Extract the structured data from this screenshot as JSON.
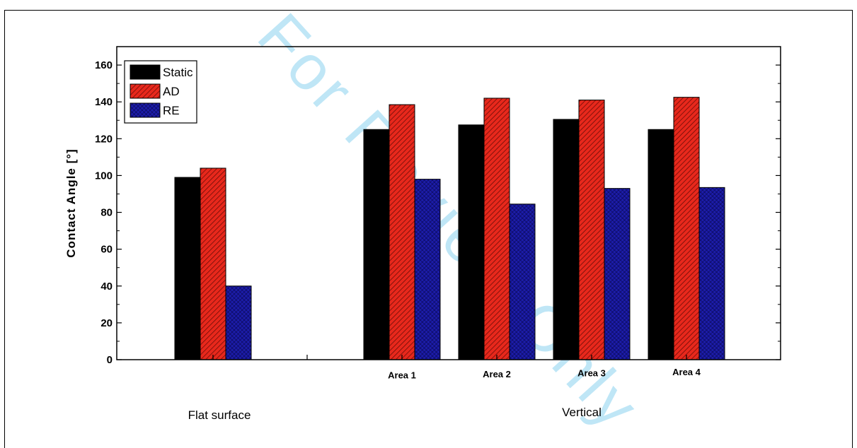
{
  "watermark": "For Review Only",
  "chart_data": {
    "type": "bar",
    "ylabel": "Contact Angle [°]",
    "ylim": [
      0,
      170
    ],
    "yticks": [
      0,
      20,
      40,
      60,
      80,
      100,
      120,
      140,
      160
    ],
    "grid": false,
    "legend_position": "top-left",
    "categories": [
      "",
      "Area 1",
      "Area 2",
      "Area 3",
      "Area 4"
    ],
    "group_labels": [
      "Flat surface",
      "Vertical"
    ],
    "series": [
      {
        "name": "Static",
        "color": "#000000",
        "values": [
          99,
          125,
          127.5,
          130.5,
          125
        ]
      },
      {
        "name": "AD",
        "color": "#e8281c",
        "values": [
          104,
          138.5,
          142,
          141,
          142.5
        ]
      },
      {
        "name": "RE",
        "color": "#1c1ca8",
        "values": [
          40,
          98,
          84.5,
          93,
          93.5
        ]
      }
    ]
  }
}
